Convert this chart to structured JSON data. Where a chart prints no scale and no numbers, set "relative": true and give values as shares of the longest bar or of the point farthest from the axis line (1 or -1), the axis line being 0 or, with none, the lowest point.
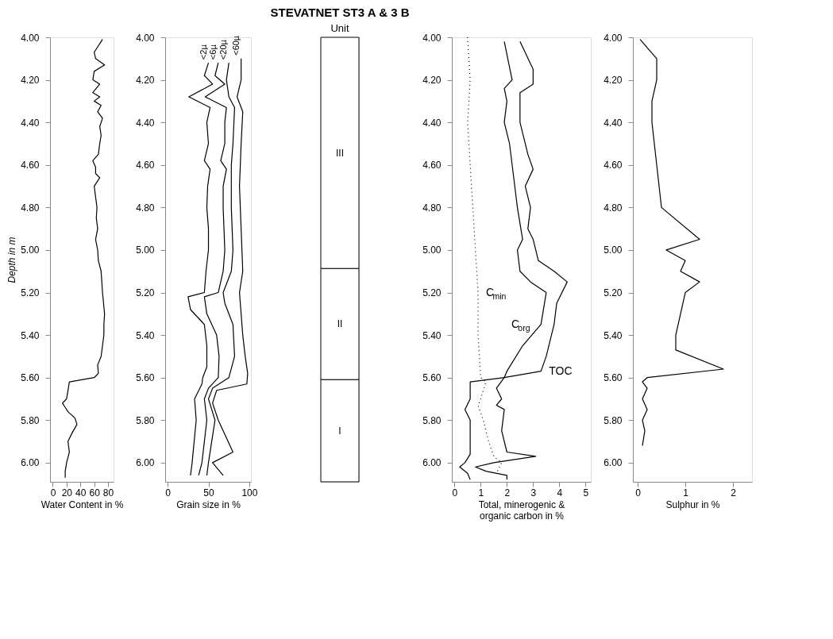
{
  "chart_data": [
    {
      "type": "line",
      "legend": false,
      "xlabel": "Water Content in %",
      "ylabel": "Depth in m",
      "xlim": [
        -4,
        88
      ],
      "xticks": [
        0,
        20,
        40,
        60,
        80
      ],
      "ylim": [
        6.09,
        4.0
      ],
      "yticks": [
        {
          "value": 4.0,
          "label": "4.00"
        },
        {
          "value": 4.2,
          "label": "4.20"
        },
        {
          "value": 4.4,
          "label": "4.40"
        },
        {
          "value": 4.6,
          "label": "4.60"
        },
        {
          "value": 4.8,
          "label": "4.80"
        },
        {
          "value": 5.0,
          "label": "5.00"
        },
        {
          "value": 5.2,
          "label": "5.20"
        },
        {
          "value": 5.4,
          "label": "5.40"
        },
        {
          "value": 5.6,
          "label": "5.60"
        },
        {
          "value": 5.8,
          "label": "5.80"
        },
        {
          "value": 6.0,
          "label": "6.00"
        }
      ],
      "grid": false,
      "marker": "none",
      "series": [
        {
          "color": "#000000",
          "line_style": "solid",
          "x": [
            72,
            60,
            62,
            75,
            60,
            58,
            68,
            58,
            68,
            60,
            70,
            65,
            72,
            68,
            70,
            68,
            66,
            58,
            62,
            62,
            68,
            60,
            62,
            64,
            63,
            65,
            62,
            65,
            66,
            70,
            72,
            75,
            74,
            74,
            72,
            70,
            65,
            66,
            60,
            24,
            22,
            20,
            14,
            18,
            22,
            32,
            35,
            28,
            22,
            24,
            20,
            18,
            18
          ],
          "values": [
            4.01,
            4.07,
            4.1,
            4.13,
            4.16,
            4.2,
            4.22,
            4.26,
            4.28,
            4.3,
            4.32,
            4.35,
            4.38,
            4.42,
            4.46,
            4.5,
            4.55,
            4.58,
            4.61,
            4.64,
            4.66,
            4.7,
            4.75,
            4.8,
            4.85,
            4.9,
            4.95,
            5.0,
            5.05,
            5.1,
            5.2,
            5.3,
            5.35,
            5.4,
            5.45,
            5.5,
            5.54,
            5.58,
            5.6,
            5.62,
            5.66,
            5.7,
            5.72,
            5.74,
            5.76,
            5.79,
            5.82,
            5.86,
            5.9,
            5.95,
            6.0,
            6.04,
            6.07
          ]
        }
      ]
    },
    {
      "type": "line",
      "legend": false,
      "xlabel": "Grain size in %",
      "xlim": [
        -3,
        102
      ],
      "xticks": [
        0,
        50,
        100
      ],
      "ylim": [
        6.09,
        4.0
      ],
      "yticks": [
        {
          "value": 4.0,
          "label": "4.00"
        },
        {
          "value": 4.2,
          "label": "4.20"
        },
        {
          "value": 4.4,
          "label": "4.40"
        },
        {
          "value": 4.6,
          "label": "4.60"
        },
        {
          "value": 4.8,
          "label": "4.80"
        },
        {
          "value": 5.0,
          "label": "5.00"
        },
        {
          "value": 5.2,
          "label": "5.20"
        },
        {
          "value": 5.4,
          "label": "5.40"
        },
        {
          "value": 5.6,
          "label": "5.60"
        },
        {
          "value": 5.8,
          "label": "5.80"
        },
        {
          "value": 6.0,
          "label": "6.00"
        }
      ],
      "grid": false,
      "marker": "none",
      "series": [
        {
          "name": "<2µ",
          "color": "#000000",
          "line_style": "solid",
          "x": [
            50,
            45,
            55,
            26,
            52,
            48,
            50,
            45,
            52,
            49,
            48,
            50,
            50,
            47,
            45,
            25,
            28,
            45,
            48,
            48,
            43,
            42,
            33,
            35,
            30,
            28
          ],
          "values": [
            4.12,
            4.18,
            4.22,
            4.28,
            4.33,
            4.4,
            4.5,
            4.58,
            4.62,
            4.7,
            4.8,
            4.9,
            5.0,
            5.1,
            5.2,
            5.22,
            5.28,
            5.35,
            5.45,
            5.55,
            5.6,
            5.63,
            5.7,
            5.8,
            6.0,
            6.06
          ]
        },
        {
          "name": "<6µ",
          "color": "#000000",
          "line_style": "solid",
          "x": [
            62,
            58,
            70,
            46,
            72,
            70,
            70,
            65,
            72,
            68,
            68,
            70,
            68,
            62,
            45,
            48,
            60,
            63,
            62,
            50,
            45,
            48,
            42,
            38
          ],
          "values": [
            4.12,
            4.18,
            4.22,
            4.28,
            4.33,
            4.4,
            4.5,
            4.58,
            4.62,
            4.7,
            4.8,
            5.0,
            5.1,
            5.2,
            5.22,
            5.3,
            5.4,
            5.5,
            5.6,
            5.65,
            5.7,
            5.8,
            6.0,
            6.06
          ]
        },
        {
          "name": "<20µ",
          "color": "#000000",
          "line_style": "solid",
          "x": [
            75,
            72,
            75,
            82,
            80,
            78,
            78,
            80,
            78,
            68,
            70,
            80,
            82,
            75,
            55,
            50,
            58,
            50,
            48
          ],
          "values": [
            4.12,
            4.2,
            4.28,
            4.33,
            4.5,
            4.6,
            4.8,
            5.0,
            5.1,
            5.2,
            5.25,
            5.35,
            5.5,
            5.6,
            5.65,
            5.7,
            5.8,
            6.0,
            6.06
          ]
        },
        {
          "name": "<60µ",
          "color": "#000000",
          "line_style": "solid",
          "x": [
            90,
            90,
            85,
            92,
            90,
            88,
            90,
            92,
            88,
            90,
            92,
            95,
            98,
            97,
            60,
            55,
            62,
            80,
            55,
            68
          ],
          "values": [
            4.1,
            4.2,
            4.28,
            4.35,
            4.5,
            4.7,
            4.9,
            5.1,
            5.2,
            5.3,
            5.4,
            5.5,
            5.58,
            5.63,
            5.66,
            5.72,
            5.8,
            5.95,
            6.0,
            6.06
          ]
        }
      ]
    },
    {
      "type": "bar",
      "title": "STEVATNET ST3 A & 3 B",
      "subtitle": "Unit",
      "categories": [
        null
      ],
      "relative": true,
      "stacked": true,
      "legend": false,
      "series": [
        {
          "name": "I",
          "color": "#ffffff",
          "values": [
            0.23
          ]
        },
        {
          "name": "II",
          "color": "#ffffff",
          "values": [
            0.25
          ]
        },
        {
          "name": "III",
          "color": "#ffffff",
          "values": [
            0.52
          ]
        }
      ]
    },
    {
      "type": "line",
      "legend": false,
      "xlabel": "Total, minerogenic &\norganic carbon in %",
      "xlim": [
        -0.1,
        5.2
      ],
      "xticks": [
        0,
        1,
        2,
        3,
        4,
        5
      ],
      "ylim": [
        6.09,
        4.0
      ],
      "yticks": [
        {
          "value": 4.0,
          "label": "4.00"
        },
        {
          "value": 4.2,
          "label": "4.20"
        },
        {
          "value": 4.4,
          "label": "4.40"
        },
        {
          "value": 4.6,
          "label": "4.60"
        },
        {
          "value": 4.8,
          "label": "4.80"
        },
        {
          "value": 5.0,
          "label": "5.00"
        },
        {
          "value": 5.2,
          "label": "5.20"
        },
        {
          "value": 5.4,
          "label": "5.40"
        },
        {
          "value": 5.6,
          "label": "5.60"
        },
        {
          "value": 5.8,
          "label": "5.80"
        },
        {
          "value": 6.0,
          "label": "6.00"
        }
      ],
      "grid": false,
      "marker": "none",
      "series": [
        {
          "name": "C$_{min}$",
          "color": "#000000",
          "line_style": "dotted",
          "x": [
            0.5,
            0.6,
            0.5,
            0.6,
            0.7,
            0.8,
            0.9,
            0.9,
            1.0,
            1.2,
            1.0,
            0.9,
            1.1,
            1.3,
            1.5,
            1.8,
            1.6
          ],
          "values": [
            4.0,
            4.2,
            4.4,
            4.6,
            4.8,
            5.0,
            5.2,
            5.4,
            5.6,
            5.62,
            5.7,
            5.73,
            5.8,
            5.9,
            5.97,
            6.0,
            6.05
          ]
        },
        {
          "name": "C$_{org}$",
          "color": "#000000",
          "line_style": "solid",
          "x": [
            1.9,
            2.2,
            1.9,
            2.0,
            1.9,
            2.1,
            2.2,
            2.4,
            2.6,
            2.4,
            2.5,
            2.9,
            3.5,
            3.3,
            2.6,
            2.0,
            1.9,
            0.6,
            0.6,
            0.4,
            0.6,
            0.6,
            0.6,
            0.4,
            0.2,
            0.5,
            0.6
          ],
          "values": [
            4.02,
            4.2,
            4.24,
            4.3,
            4.4,
            4.5,
            4.6,
            4.8,
            4.95,
            5.0,
            5.1,
            5.15,
            5.2,
            5.35,
            5.45,
            5.57,
            5.6,
            5.62,
            5.7,
            5.75,
            5.8,
            5.9,
            5.96,
            6.0,
            6.02,
            6.05,
            6.08
          ]
        },
        {
          "name": "TOC",
          "color": "#000000",
          "line_style": "solid",
          "x": [
            2.5,
            3.0,
            3.0,
            2.5,
            2.5,
            2.8,
            3.0,
            2.7,
            2.9,
            2.8,
            3.0,
            3.1,
            3.2,
            3.8,
            4.3,
            3.9,
            3.8,
            3.5,
            3.3,
            1.9,
            1.6,
            1.8,
            1.6,
            1.9,
            1.8,
            2.0,
            3.1,
            1.5,
            0.8,
            1.2,
            2.0,
            2.0
          ],
          "values": [
            4.02,
            4.15,
            4.22,
            4.26,
            4.4,
            4.55,
            4.62,
            4.7,
            4.8,
            4.9,
            4.95,
            5.0,
            5.05,
            5.1,
            5.15,
            5.25,
            5.35,
            5.5,
            5.57,
            5.6,
            5.65,
            5.7,
            5.73,
            5.75,
            5.85,
            5.95,
            5.97,
            6.0,
            6.02,
            6.04,
            6.06,
            6.08
          ]
        }
      ]
    },
    {
      "type": "line",
      "legend": false,
      "xlabel": "Sulphur in %",
      "xlim": [
        -0.1,
        2.4
      ],
      "xticks": [
        0,
        1,
        2
      ],
      "ylim": [
        6.09,
        4.0
      ],
      "yticks": [
        {
          "value": 4.0,
          "label": "4.00"
        },
        {
          "value": 4.2,
          "label": "4.20"
        },
        {
          "value": 4.4,
          "label": "4.40"
        },
        {
          "value": 4.6,
          "label": "4.60"
        },
        {
          "value": 4.8,
          "label": "4.80"
        },
        {
          "value": 5.0,
          "label": "5.00"
        },
        {
          "value": 5.2,
          "label": "5.20"
        },
        {
          "value": 5.4,
          "label": "5.40"
        },
        {
          "value": 5.6,
          "label": "5.60"
        },
        {
          "value": 5.8,
          "label": "5.80"
        },
        {
          "value": 6.0,
          "label": "6.00"
        }
      ],
      "grid": false,
      "marker": "none",
      "series": [
        {
          "color": "#000000",
          "line_style": "solid",
          "x": [
            0.05,
            0.4,
            0.4,
            0.3,
            0.3,
            0.4,
            0.5,
            1.3,
            0.6,
            1.0,
            0.9,
            1.3,
            1.0,
            0.9,
            0.8,
            0.8,
            1.8,
            0.2,
            0.1,
            0.2,
            0.1,
            0.2,
            0.1,
            0.15,
            0.1
          ],
          "values": [
            4.01,
            4.1,
            4.2,
            4.3,
            4.4,
            4.6,
            4.8,
            4.95,
            5.0,
            5.05,
            5.1,
            5.15,
            5.2,
            5.3,
            5.4,
            5.47,
            5.56,
            5.6,
            5.62,
            5.65,
            5.7,
            5.75,
            5.8,
            5.85,
            5.92
          ]
        }
      ]
    }
  ]
}
